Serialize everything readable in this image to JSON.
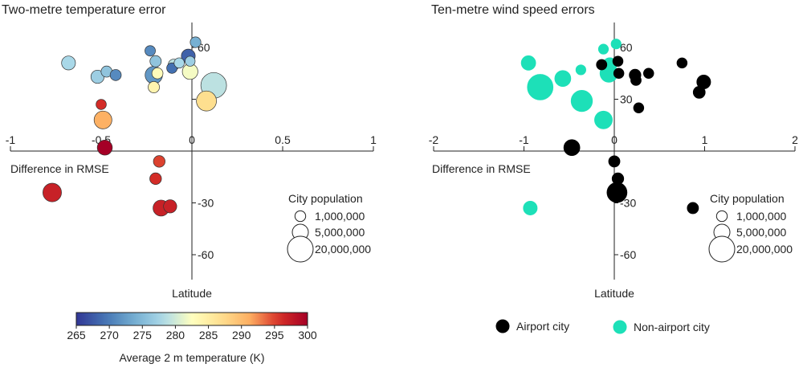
{
  "chart_data": [
    {
      "type": "scatter",
      "title": "Two-metre temperature error",
      "xlabel": "Difference in RMSE",
      "ylabel": "Latitude",
      "xlim": [
        -1,
        1
      ],
      "ylim": [
        -70,
        70
      ],
      "x_ticks": [
        "-1",
        "-0.5",
        "0",
        "0.5",
        "1"
      ],
      "y_ticks": [
        "60",
        "30",
        "-30",
        "-60"
      ],
      "size_legend": {
        "title": "City population",
        "entries": [
          "1,000,000",
          "5,000,000",
          "20,000,000"
        ],
        "values": [
          1000000,
          5000000,
          20000000
        ]
      },
      "colorbar": {
        "label": "Average 2 m temperature (K)",
        "ticks": [
          "265",
          "270",
          "275",
          "280",
          "285",
          "290",
          "295",
          "300"
        ],
        "range": [
          265,
          300
        ]
      },
      "points": [
        {
          "x": -0.68,
          "y": 51,
          "pop": 3000000,
          "temp": 278
        },
        {
          "x": -0.52,
          "y": 43,
          "pop": 2500000,
          "temp": 277
        },
        {
          "x": -0.47,
          "y": 46,
          "pop": 1200000,
          "temp": 276
        },
        {
          "x": -0.42,
          "y": 44,
          "pop": 1200000,
          "temp": 271
        },
        {
          "x": -0.5,
          "y": 27,
          "pop": 800000,
          "temp": 296
        },
        {
          "x": -0.49,
          "y": 18,
          "pop": 7000000,
          "temp": 291
        },
        {
          "x": -0.48,
          "y": 2,
          "pop": 4000000,
          "temp": 300
        },
        {
          "x": -0.23,
          "y": 58,
          "pop": 900000,
          "temp": 271
        },
        {
          "x": -0.2,
          "y": 52,
          "pop": 1300000,
          "temp": 276
        },
        {
          "x": -0.21,
          "y": 44,
          "pop": 6500000,
          "temp": 272
        },
        {
          "x": -0.19,
          "y": 45,
          "pop": 1200000,
          "temp": 283
        },
        {
          "x": -0.21,
          "y": 37,
          "pop": 1300000,
          "temp": 284
        },
        {
          "x": -0.11,
          "y": 48,
          "pop": 900000,
          "temp": 269
        },
        {
          "x": -0.1,
          "y": 50,
          "pop": 1200000,
          "temp": 279
        },
        {
          "x": -0.07,
          "y": 51,
          "pop": 800000,
          "temp": 278
        },
        {
          "x": -0.02,
          "y": 55,
          "pop": 3000000,
          "temp": 268
        },
        {
          "x": 0.02,
          "y": 63,
          "pop": 1000000,
          "temp": 274
        },
        {
          "x": -0.01,
          "y": 52,
          "pop": 700000,
          "temp": 277
        },
        {
          "x": -0.01,
          "y": 46,
          "pop": 4500000,
          "temp": 282
        },
        {
          "x": 0.08,
          "y": 29,
          "pop": 10000000,
          "temp": 287
        },
        {
          "x": 0.12,
          "y": 38,
          "pop": 20000000,
          "temp": 279
        },
        {
          "x": -0.18,
          "y": -6,
          "pop": 1500000,
          "temp": 295
        },
        {
          "x": -0.2,
          "y": -16,
          "pop": 1500000,
          "temp": 296
        },
        {
          "x": -0.17,
          "y": -33,
          "pop": 5000000,
          "temp": 297
        },
        {
          "x": -0.12,
          "y": -32,
          "pop": 2500000,
          "temp": 297
        },
        {
          "x": -0.77,
          "y": -24,
          "pop": 8000000,
          "temp": 297
        }
      ]
    },
    {
      "type": "scatter",
      "title": "Ten-metre wind speed errors",
      "xlabel": "Difference in RMSE",
      "ylabel": "Latitude",
      "xlim": [
        -2,
        2
      ],
      "ylim": [
        -70,
        70
      ],
      "x_ticks": [
        "-2",
        "-1",
        "0",
        "1",
        "2"
      ],
      "y_ticks": [
        "60",
        "30",
        "-30",
        "-60"
      ],
      "size_legend": {
        "title": "City population",
        "entries": [
          "1,000,000",
          "5,000,000",
          "20,000,000"
        ],
        "values": [
          1000000,
          5000000,
          20000000
        ]
      },
      "category_legend": [
        {
          "label": "Airport city",
          "color": "#000000"
        },
        {
          "label": "Non-airport city",
          "color": "#1de0b8"
        }
      ],
      "points": [
        {
          "x": -0.95,
          "y": 51,
          "pop": 3500000,
          "airport": false
        },
        {
          "x": -0.82,
          "y": 37,
          "pop": 20000000,
          "airport": false
        },
        {
          "x": -0.57,
          "y": 42,
          "pop": 5000000,
          "airport": false
        },
        {
          "x": -0.36,
          "y": 29,
          "pop": 12000000,
          "airport": false
        },
        {
          "x": -0.37,
          "y": 47,
          "pop": 700000,
          "airport": false
        },
        {
          "x": -0.12,
          "y": 18,
          "pop": 7000000,
          "airport": false
        },
        {
          "x": -0.06,
          "y": 45,
          "pop": 7000000,
          "airport": false
        },
        {
          "x": -0.12,
          "y": 59,
          "pop": 700000,
          "airport": false
        },
        {
          "x": -0.05,
          "y": 50,
          "pop": 3000000,
          "airport": false
        },
        {
          "x": 0.02,
          "y": 62,
          "pop": 700000,
          "airport": false
        },
        {
          "x": -0.93,
          "y": -33,
          "pop": 3000000,
          "airport": false
        },
        {
          "x": -0.14,
          "y": 50,
          "pop": 900000,
          "airport": true
        },
        {
          "x": 0.04,
          "y": 52,
          "pop": 800000,
          "airport": true
        },
        {
          "x": 0.05,
          "y": 45,
          "pop": 800000,
          "airport": true
        },
        {
          "x": 0.23,
          "y": 44,
          "pop": 1500000,
          "airport": true
        },
        {
          "x": 0.24,
          "y": 41,
          "pop": 900000,
          "airport": true
        },
        {
          "x": 0.38,
          "y": 45,
          "pop": 800000,
          "airport": true
        },
        {
          "x": 0.75,
          "y": 51,
          "pop": 800000,
          "airport": true
        },
        {
          "x": 0.99,
          "y": 40,
          "pop": 3000000,
          "airport": true
        },
        {
          "x": 0.94,
          "y": 34,
          "pop": 1700000,
          "airport": true
        },
        {
          "x": 0.27,
          "y": 25,
          "pop": 800000,
          "airport": true
        },
        {
          "x": -0.47,
          "y": 2,
          "pop": 5000000,
          "airport": true
        },
        {
          "x": 0.0,
          "y": -6,
          "pop": 1300000,
          "airport": true
        },
        {
          "x": 0.04,
          "y": -16,
          "pop": 1500000,
          "airport": true
        },
        {
          "x": 0.03,
          "y": -24,
          "pop": 10000000,
          "airport": true
        },
        {
          "x": 0.87,
          "y": -33,
          "pop": 1300000,
          "airport": true
        }
      ]
    }
  ]
}
